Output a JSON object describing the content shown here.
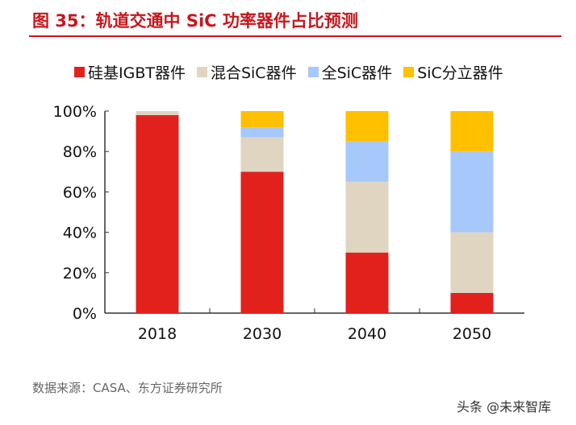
{
  "chart_data": {
    "type": "bar",
    "stacked": true,
    "title": "图 35：轨道交通中 SiC 功率器件占比预测",
    "categories": [
      "2018",
      "2030",
      "2040",
      "2050"
    ],
    "series": [
      {
        "name": "硅基IGBT器件",
        "color": "#e2211c",
        "values": [
          98,
          70,
          30,
          10
        ]
      },
      {
        "name": "混合SiC器件",
        "color": "#dfd5c1",
        "values": [
          2,
          17,
          35,
          30
        ]
      },
      {
        "name": "全SiC器件",
        "color": "#a6c8fa",
        "values": [
          0,
          5,
          20,
          40
        ]
      },
      {
        "name": "SiC分立器件",
        "color": "#ffc000",
        "values": [
          0,
          8,
          15,
          20
        ]
      }
    ],
    "yticks": [
      "0%",
      "20%",
      "40%",
      "60%",
      "80%",
      "100%"
    ],
    "ylim": [
      0,
      100
    ],
    "grid": false,
    "legend": "top"
  },
  "source": "数据来源：CASA、东方证券研究所",
  "watermark": "头条 @未来智库"
}
